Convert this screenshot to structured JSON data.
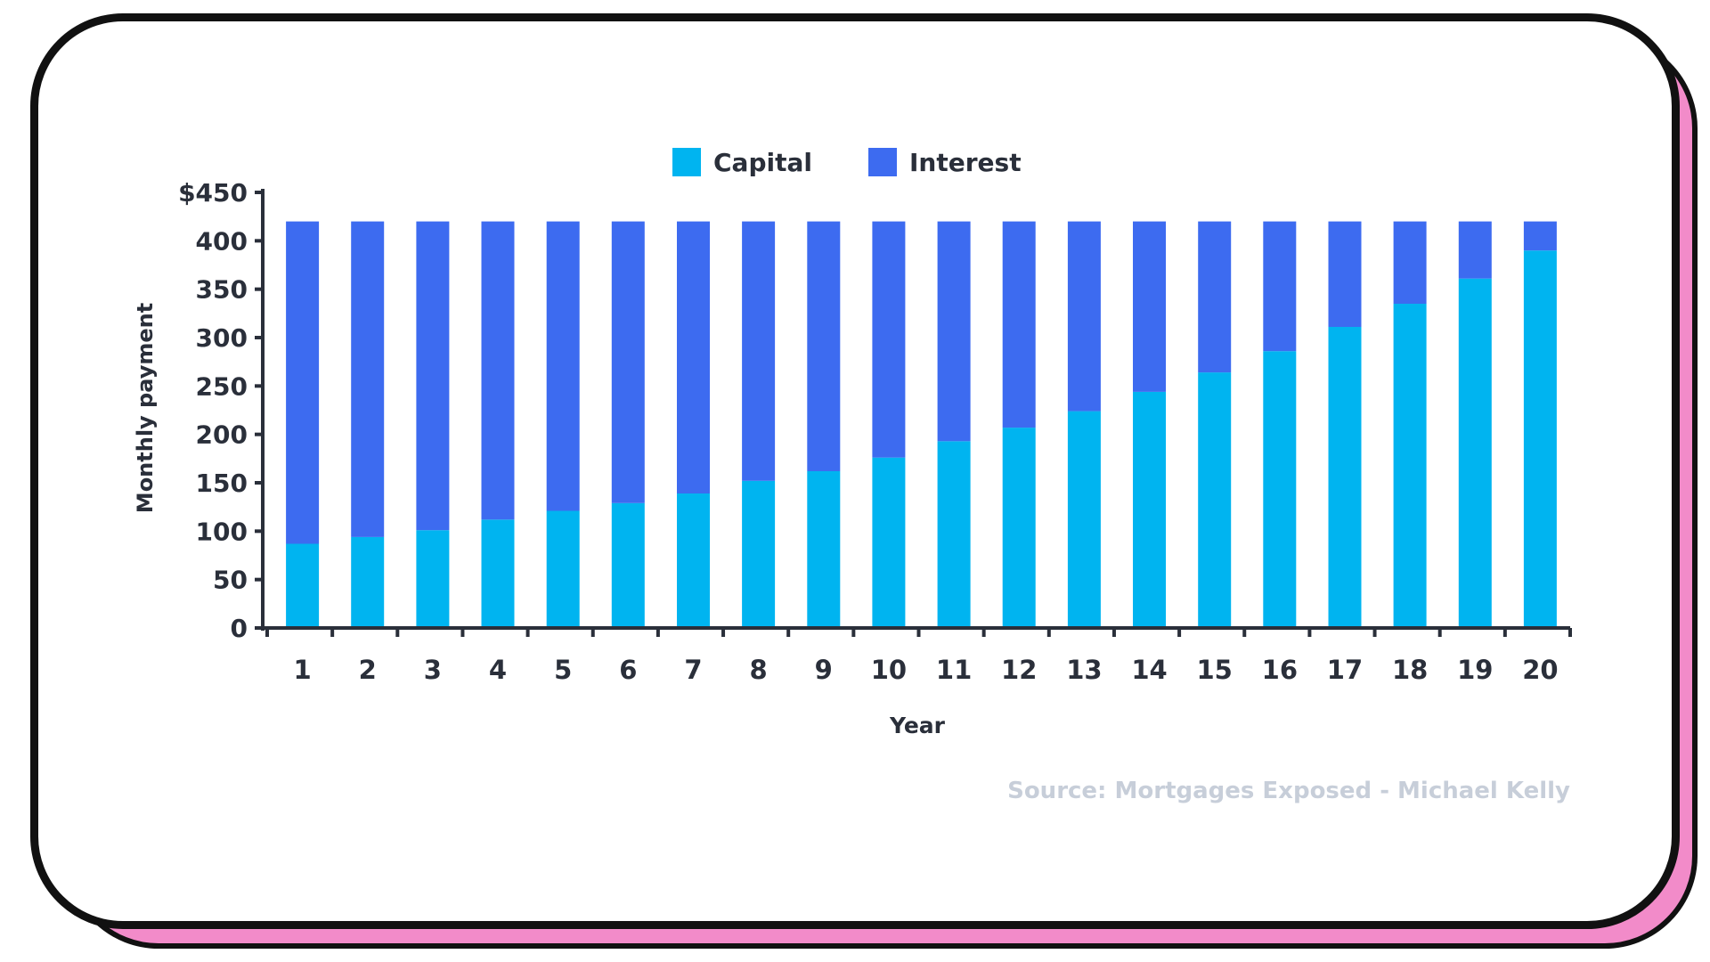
{
  "chart_data": {
    "type": "bar",
    "stacked": true,
    "categories": [
      "1",
      "2",
      "3",
      "4",
      "5",
      "6",
      "7",
      "8",
      "9",
      "10",
      "11",
      "12",
      "13",
      "14",
      "15",
      "16",
      "17",
      "18",
      "19",
      "20"
    ],
    "series": [
      {
        "name": "Capital",
        "color": "#00b4f0",
        "values": [
          87,
          94,
          101,
          112,
          121,
          129,
          139,
          152,
          162,
          176,
          193,
          207,
          224,
          244,
          264,
          286,
          311,
          335,
          361,
          390
        ]
      },
      {
        "name": "Interest",
        "color": "#3d6bf0",
        "values": [
          333,
          326,
          319,
          308,
          299,
          291,
          281,
          268,
          258,
          244,
          227,
          213,
          196,
          176,
          156,
          134,
          109,
          85,
          59,
          30
        ]
      }
    ],
    "xlabel": "Year",
    "ylabel": "Monthly payment",
    "ylim": [
      0,
      450
    ],
    "yticks": [
      0,
      50,
      100,
      150,
      200,
      250,
      300,
      350,
      400,
      450
    ],
    "ytick_labels": [
      "0",
      "50",
      "100",
      "150",
      "200",
      "250",
      "300",
      "350",
      "400",
      "$450"
    ],
    "legend_position": "top-center",
    "grid": false,
    "source": "Source: Mortgages Exposed - Michael Kelly"
  }
}
